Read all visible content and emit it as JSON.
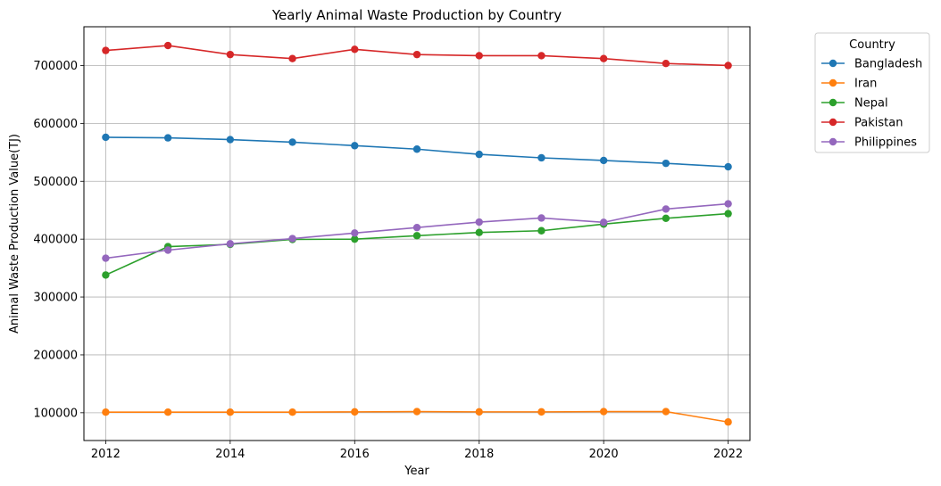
{
  "chart_data": {
    "type": "line",
    "title": "Yearly Animal Waste Production by Country",
    "xlabel": "Year",
    "ylabel": "Animal Waste Production Value(TJ)",
    "x": [
      2012,
      2013,
      2014,
      2015,
      2016,
      2017,
      2018,
      2019,
      2020,
      2021,
      2022
    ],
    "xlim": [
      2011.65,
      2022.35
    ],
    "ylim": [
      52000,
      767000
    ],
    "x_ticks": [
      2012,
      2014,
      2016,
      2018,
      2020,
      2022
    ],
    "x_tick_labels": [
      "2012",
      "2014",
      "2016",
      "2018",
      "2020",
      "2022"
    ],
    "y_ticks": [
      100000,
      200000,
      300000,
      400000,
      500000,
      600000,
      700000
    ],
    "y_tick_labels": [
      "100000",
      "200000",
      "300000",
      "400000",
      "500000",
      "600000",
      "700000"
    ],
    "grid": true,
    "legend_title": "Country",
    "legend_position": "outside-top-right",
    "series": [
      {
        "name": "Bangladesh",
        "color": "#1f77b4",
        "values": [
          576000,
          575000,
          572000,
          567500,
          561500,
          555500,
          546500,
          540500,
          536000,
          531000,
          525000
        ]
      },
      {
        "name": "Iran",
        "color": "#ff7f0e",
        "values": [
          101000,
          101000,
          101000,
          101000,
          101500,
          102000,
          101500,
          101500,
          102000,
          102000,
          84000
        ]
      },
      {
        "name": "Nepal",
        "color": "#2ca02c",
        "values": [
          338000,
          387000,
          391000,
          399500,
          400000,
          406000,
          411500,
          414500,
          426000,
          436000,
          444000
        ]
      },
      {
        "name": "Pakistan",
        "color": "#d62728",
        "values": [
          726000,
          734500,
          719000,
          712000,
          728000,
          719000,
          717000,
          717000,
          712000,
          703500,
          700000
        ]
      },
      {
        "name": "Philippines",
        "color": "#9467bd",
        "values": [
          367000,
          381000,
          392000,
          401000,
          410500,
          420000,
          429500,
          436500,
          429000,
          452000,
          461000
        ]
      }
    ]
  }
}
